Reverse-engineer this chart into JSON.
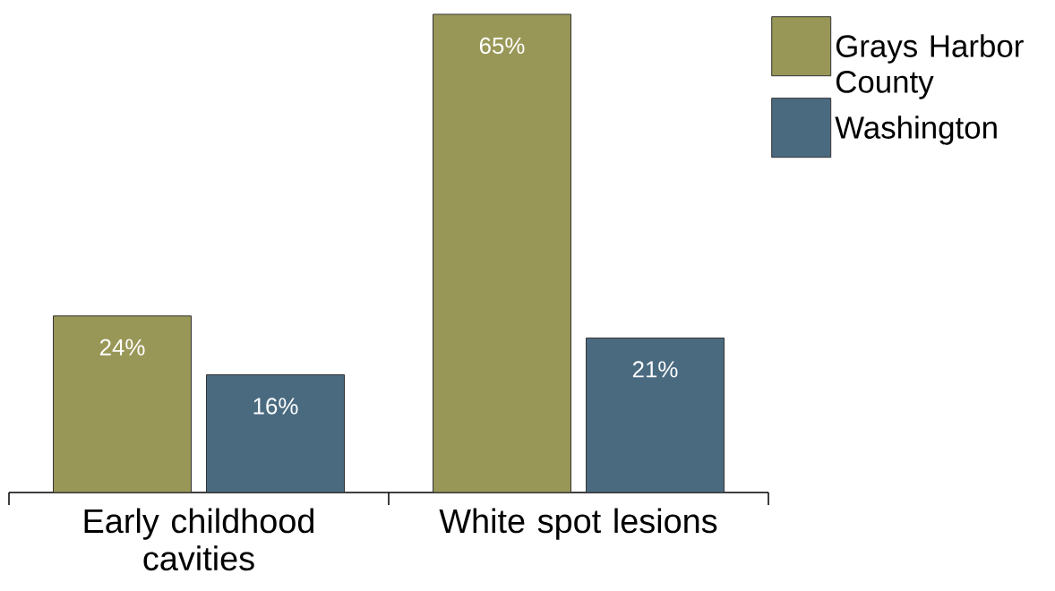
{
  "chart_data": {
    "type": "bar",
    "categories": [
      "Early childhood cavities",
      "White spot lesions"
    ],
    "series": [
      {
        "name": "Grays Harbor County",
        "color": "#999757",
        "values": [
          24,
          65
        ],
        "value_labels": [
          "24%",
          "65%"
        ]
      },
      {
        "name": "Washington",
        "color": "#4a6a80",
        "values": [
          16,
          21
        ],
        "value_labels": [
          "16%",
          "21%"
        ]
      }
    ],
    "legend": "top right"
  }
}
